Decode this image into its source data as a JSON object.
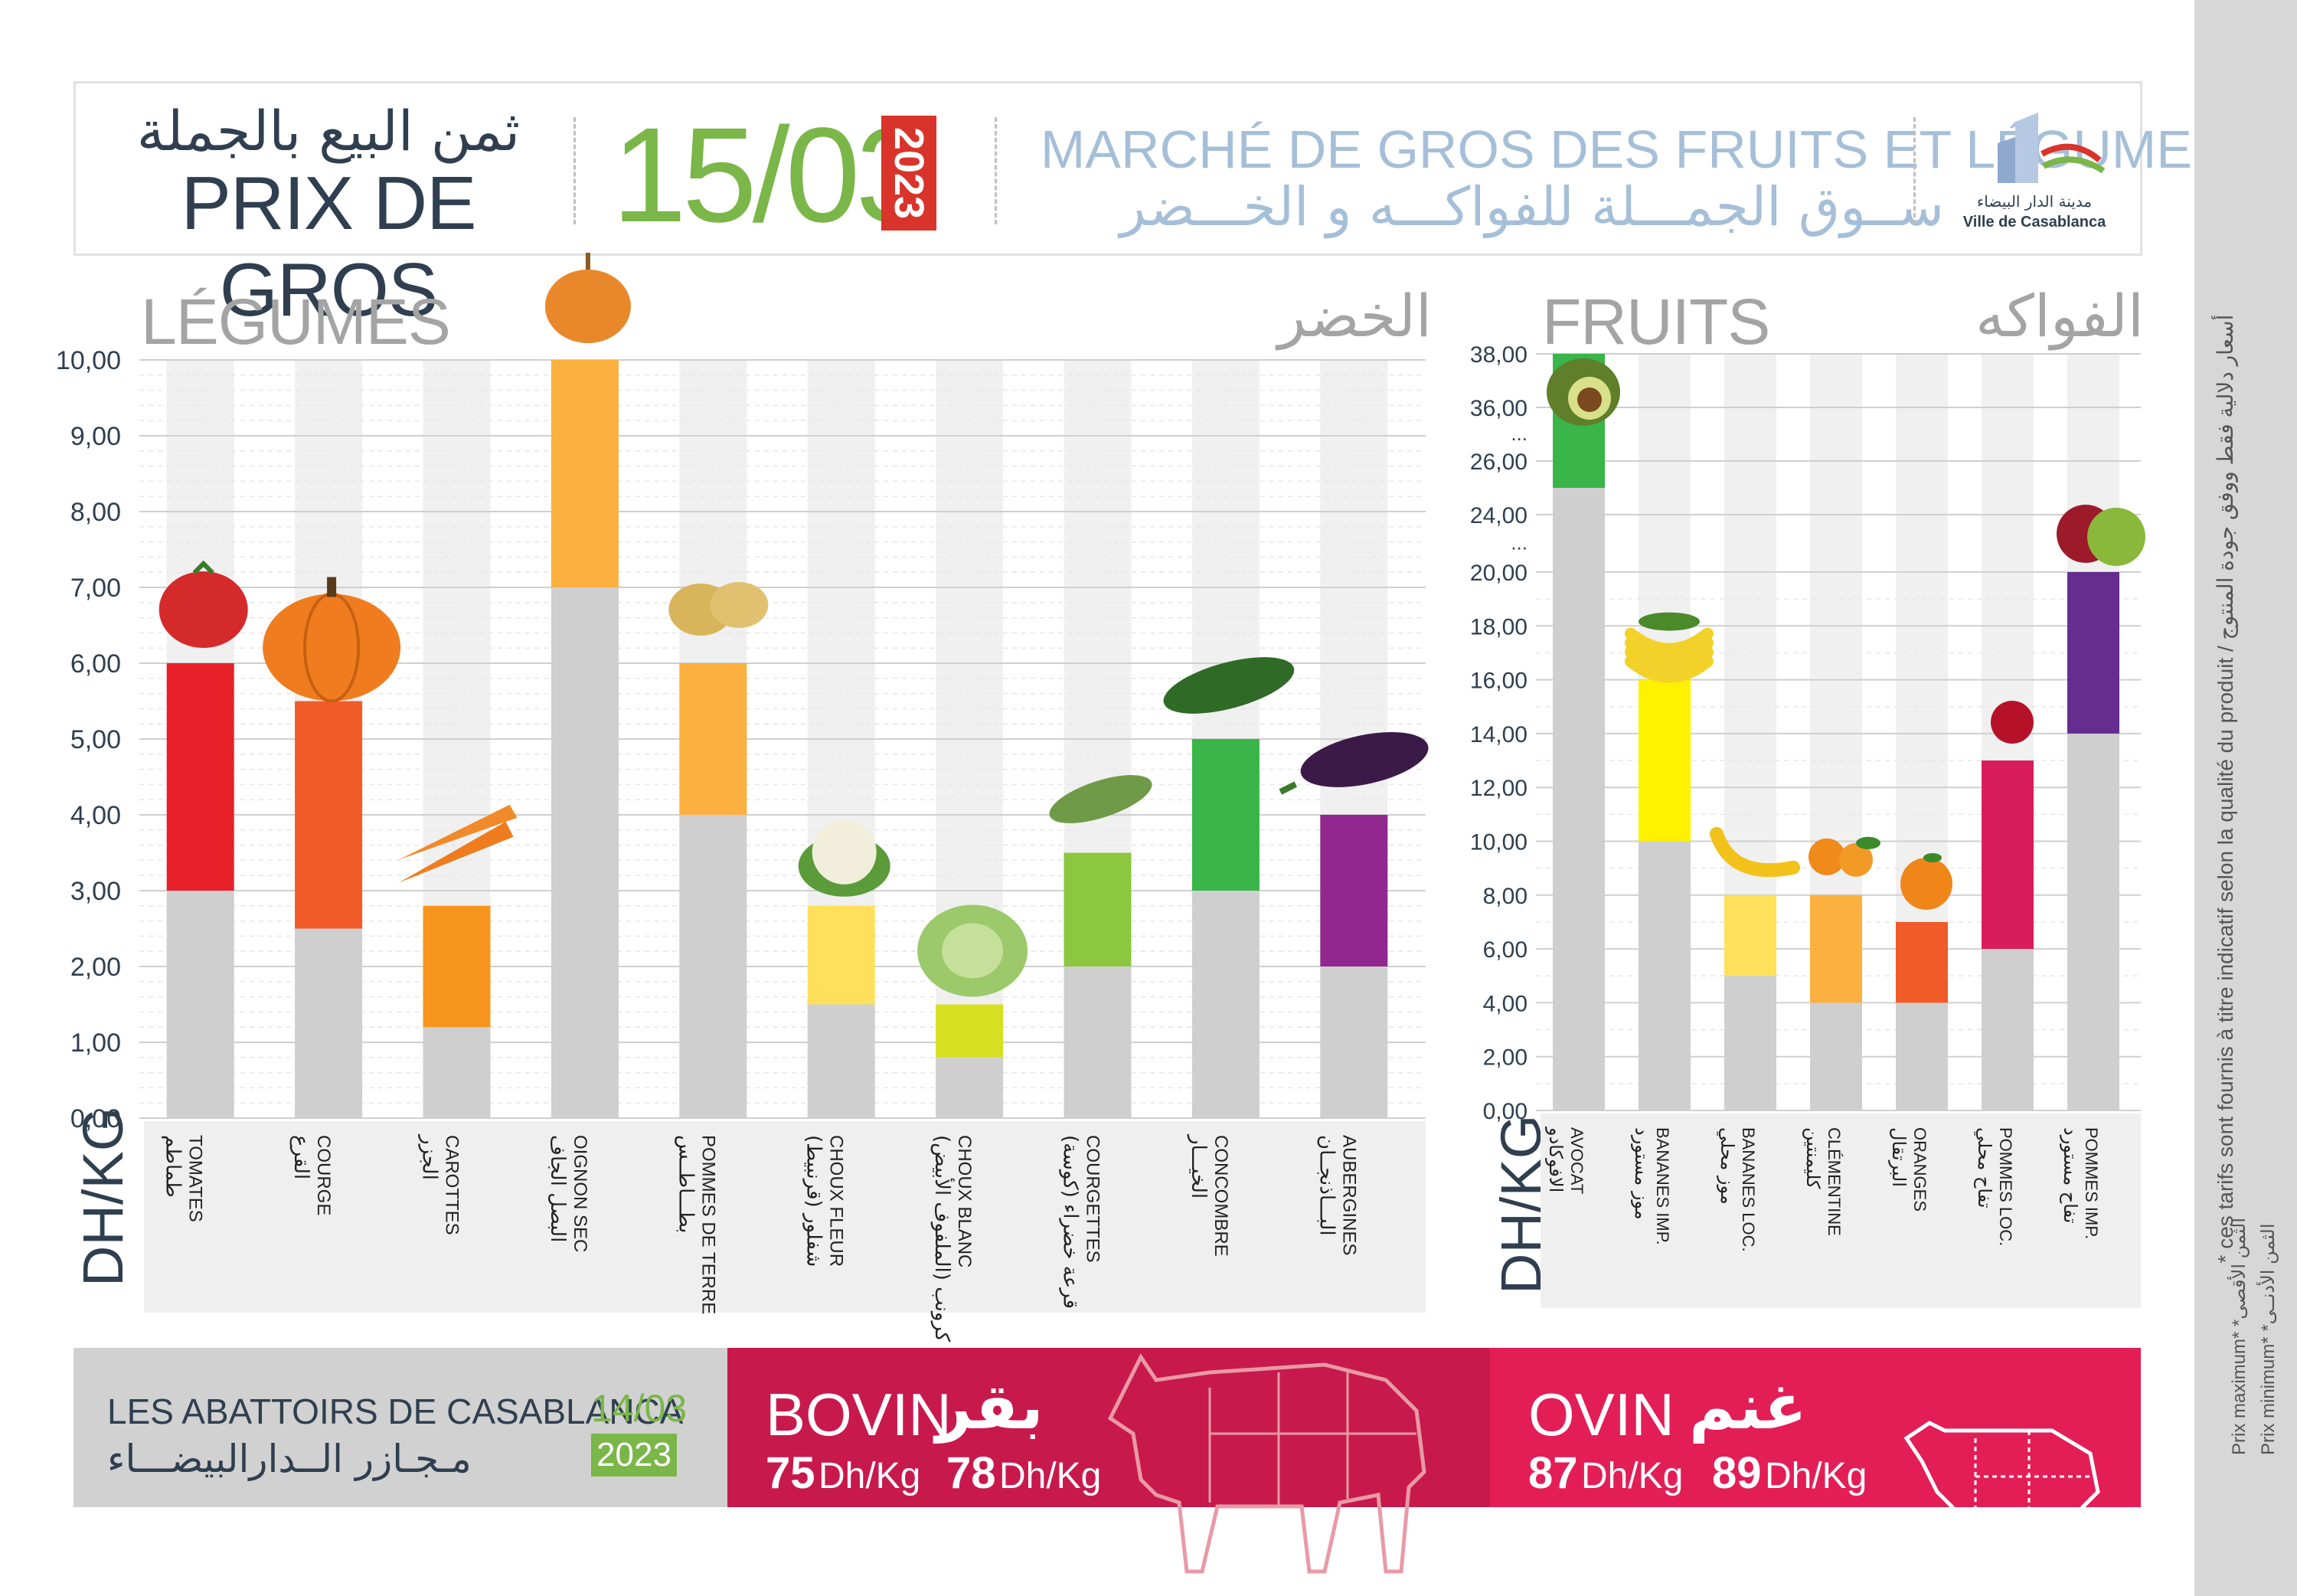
{
  "header": {
    "title_ar": "ثمن البيع بالجملة",
    "title_fr": "PRIX DE GROS",
    "date": "15/03",
    "year": "2023",
    "market_fr": "MARCHÉ DE GROS DES FRUITS ET LÉGUMES",
    "market_ar": "ســوق الجمـــلة للفواكـــه و الخـــضر",
    "logo_ar": "مدينة الدار البيضاء",
    "logo_fr": "Ville de Casablanca"
  },
  "side": {
    "note": "* ces tarifs sont fournis à titre indicatif selon la qualité du produit / أسعار دلالية فقط ووفق جودة المنتوج",
    "legend_max": "Prix maximum* *الثمن الأقصى",
    "legend_min": "Prix minimum* *الثمن الأدنــى"
  },
  "sections": {
    "legumes_fr": "LÉGUMES",
    "legumes_ar": "الخضر",
    "fruits_fr": "FRUITS",
    "fruits_ar": "الفواكه",
    "unit": "DH/KG"
  },
  "chart_data": [
    {
      "type": "bar",
      "title": "LÉGUMES",
      "ylabel": "DH/KG",
      "ylim": [
        0,
        10
      ],
      "ticks": [
        "0,00",
        "1,00",
        "2,00",
        "3,00",
        "4,00",
        "5,00",
        "6,00",
        "7,00",
        "8,00",
        "9,00",
        "10,00"
      ],
      "categories": [
        {
          "fr": "TOMATES",
          "ar": "طماطم",
          "min": 3.0,
          "max": 6.0,
          "color": "#e8202a",
          "icon": "tomato-icon"
        },
        {
          "fr": "COURGE",
          "ar": "القرع",
          "min": 2.5,
          "max": 5.5,
          "color": "#f15a29",
          "icon": "pumpkin-icon"
        },
        {
          "fr": "CAROTTES",
          "ar": "الجزر",
          "min": 1.2,
          "max": 2.8,
          "color": "#f7941d",
          "icon": "carrot-icon"
        },
        {
          "fr": "OIGNON SEC",
          "ar": "البصل الجاف",
          "min": 7.0,
          "max": 10.0,
          "color": "#fbb040",
          "icon": "onion-icon"
        },
        {
          "fr": "POMMES DE TERRE",
          "ar": "بطـــاطــس",
          "min": 4.0,
          "max": 6.0,
          "color": "#fbb040",
          "icon": "potato-icon"
        },
        {
          "fr": "CHOUX FLEUR",
          "ar": "شفلور (قرنبيط)",
          "min": 1.5,
          "max": 2.8,
          "color": "#ffe05a",
          "icon": "cauliflower-icon"
        },
        {
          "fr": "CHOUX BLANC",
          "ar": "كرونب (الملفوف الأبيض)",
          "min": 0.8,
          "max": 1.5,
          "color": "#d7df23",
          "icon": "cabbage-icon"
        },
        {
          "fr": "COURGETTES",
          "ar": "قرعة خضراء (كوسة)",
          "min": 2.0,
          "max": 3.5,
          "color": "#8dc63f",
          "icon": "zucchini-icon"
        },
        {
          "fr": "CONCOMBRE",
          "ar": "الخيـــار",
          "min": 3.0,
          "max": 5.0,
          "color": "#39b54a",
          "icon": "cucumber-icon"
        },
        {
          "fr": "AUBERGINES",
          "ar": "البـــاذنجــان",
          "min": 2.0,
          "max": 4.0,
          "color": "#92278f",
          "icon": "eggplant-icon"
        }
      ]
    },
    {
      "type": "bar",
      "title": "FRUITS",
      "ylabel": "DH/KG",
      "ylim": [
        0,
        38
      ],
      "axis_break": true,
      "ticks": [
        "0,00",
        "2,00",
        "4,00",
        "6,00",
        "8,00",
        "10,00",
        "12,00",
        "14,00",
        "16,00",
        "18,00",
        "20,00",
        "24,00",
        "26,00",
        "36,00",
        "38,00"
      ],
      "categories": [
        {
          "fr": "AVOCAT",
          "ar": "الافوكادو",
          "min": 25.0,
          "max": 38.0,
          "color": "#39b54a",
          "icon": "avocado-icon"
        },
        {
          "fr": "BANANES IMP.",
          "ar": "موز مستورد",
          "min": 10.0,
          "max": 16.0,
          "color": "#fff200",
          "icon": "banana-bunch-icon"
        },
        {
          "fr": "BANANES LOC.",
          "ar": "موز محلي",
          "min": 5.0,
          "max": 8.0,
          "color": "#ffe05a",
          "icon": "banana-icon"
        },
        {
          "fr": "CLÉMENTINE",
          "ar": "كليمنتين",
          "min": 4.0,
          "max": 8.0,
          "color": "#fbb040",
          "icon": "clementine-icon"
        },
        {
          "fr": "ORANGES",
          "ar": "البرتقال",
          "min": 4.0,
          "max": 7.0,
          "color": "#f15a29",
          "icon": "orange-icon"
        },
        {
          "fr": "POMMES LOC.",
          "ar": "تفاح محلي",
          "min": 6.0,
          "max": 13.0,
          "color": "#d91c5c",
          "icon": "apple-red-icon"
        },
        {
          "fr": "POMMES IMP.",
          "ar": "تفاح مستورد",
          "min": 14.0,
          "max": 20.0,
          "color": "#662d91",
          "icon": "apples-icon"
        }
      ]
    }
  ],
  "abattoirs": {
    "title_fr": "LES ABATTOIRS DE CASABLANCA",
    "title_ar": "مـجـازر الــدارالبيضـــاء",
    "date": "14/03",
    "year": "2023",
    "bovin": {
      "fr": "BOVIN",
      "ar": "بقر",
      "min": "75",
      "max": "78",
      "unit": "Dh/Kg"
    },
    "ovin": {
      "fr": "OVIN",
      "ar": "غنم",
      "min": "87",
      "max": "89",
      "unit": "Dh/Kg"
    }
  }
}
